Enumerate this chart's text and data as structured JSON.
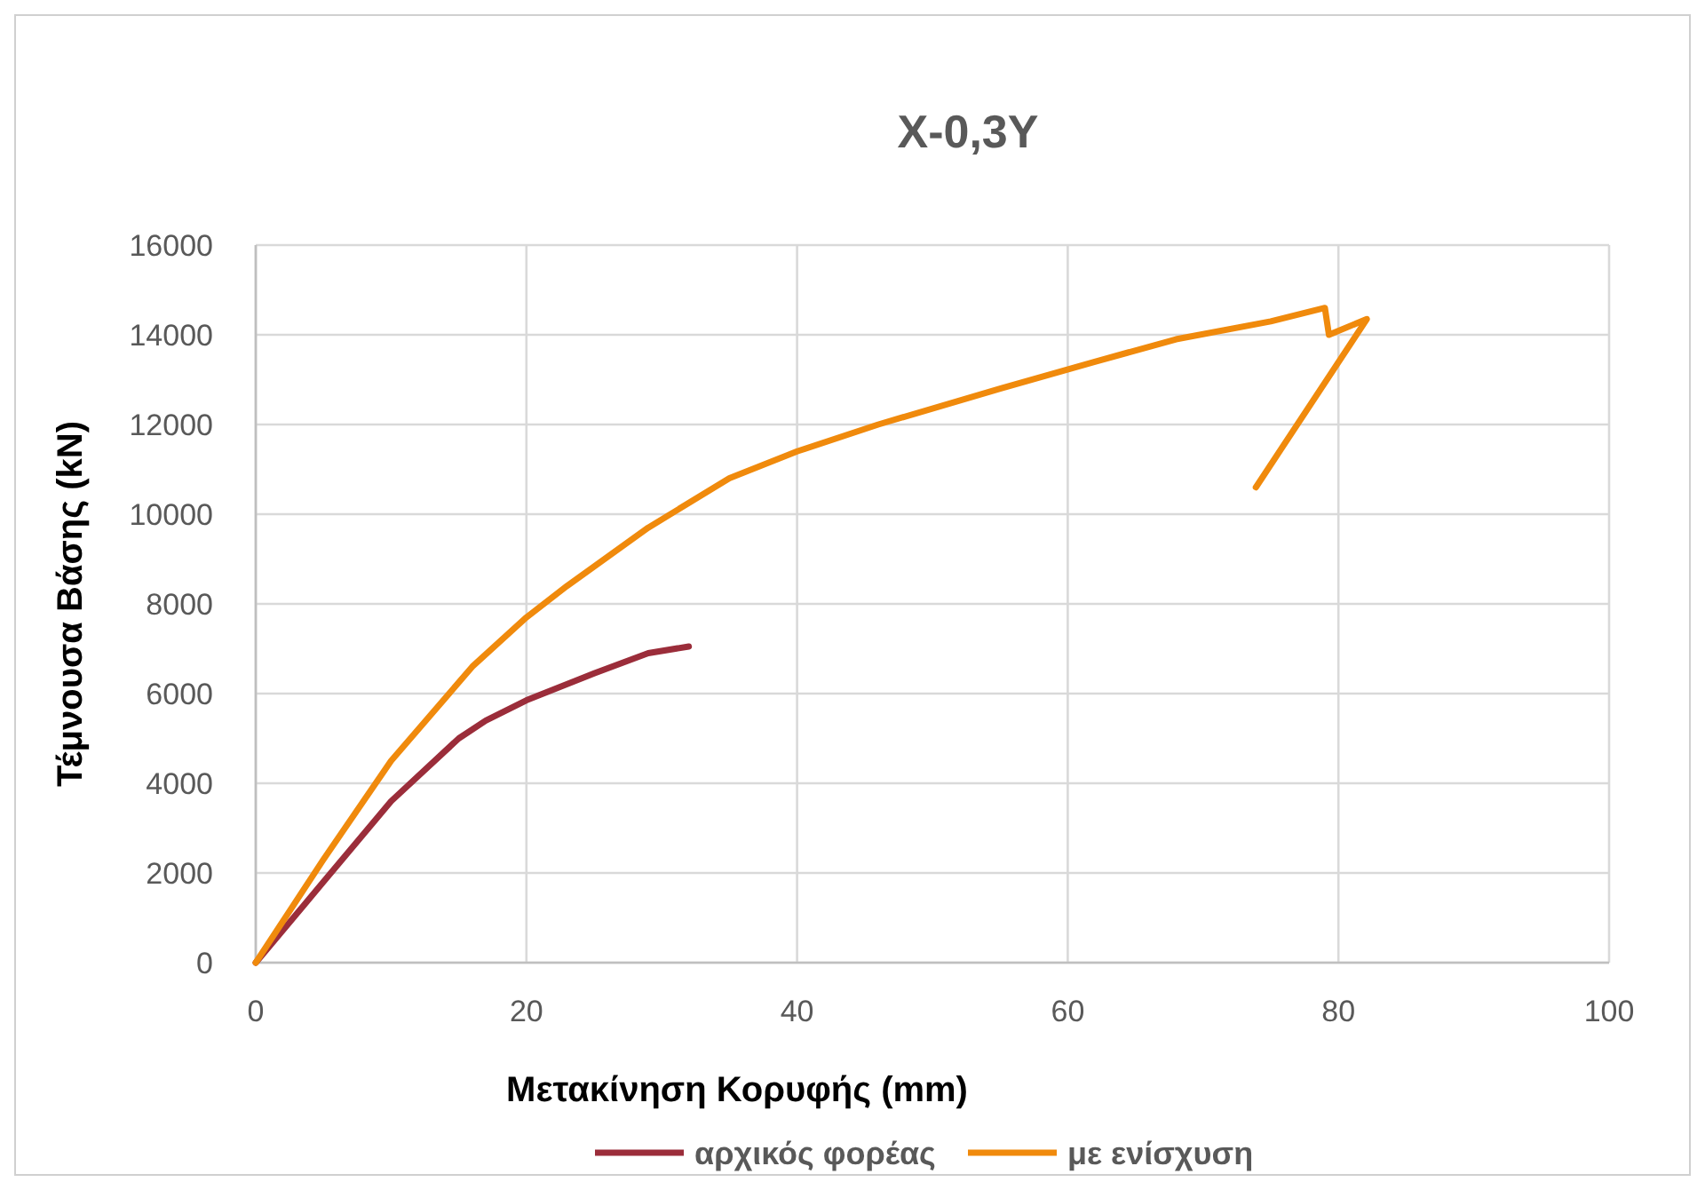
{
  "chart_data": {
    "type": "line",
    "title": "X-0,3Y",
    "xlabel": "Μετακίνηση Κορυφής (mm)",
    "ylabel": "Τέμνουσα Βάσης (kN)",
    "xlim": [
      0,
      100
    ],
    "xticks": [
      0,
      20,
      40,
      60,
      80,
      100
    ],
    "ylim": [
      0,
      16000
    ],
    "yticks": [
      0,
      2000,
      4000,
      6000,
      8000,
      10000,
      12000,
      14000,
      16000
    ],
    "grid": true,
    "legend": "bottom",
    "marker": "none",
    "series": [
      {
        "name": "αρχικός φορέας",
        "color": "#9b2d3a",
        "x": [
          0,
          5,
          10,
          15,
          17,
          20,
          25,
          29,
          32
        ],
        "values": [
          0,
          1800,
          3600,
          5000,
          5400,
          5850,
          6450,
          6900,
          7050
        ]
      },
      {
        "name": "με ενίσχυση",
        "color": "#f08a0c",
        "x": [
          0,
          5,
          10,
          16,
          20,
          23,
          29,
          35,
          40,
          46,
          55,
          62,
          68,
          75,
          79,
          79.3,
          82.1,
          73.9
        ],
        "values": [
          0,
          2300,
          4500,
          6600,
          7700,
          8400,
          9700,
          10800,
          11400,
          12000,
          12800,
          13400,
          13900,
          14300,
          14600,
          14000,
          14350,
          10600
        ]
      }
    ]
  }
}
